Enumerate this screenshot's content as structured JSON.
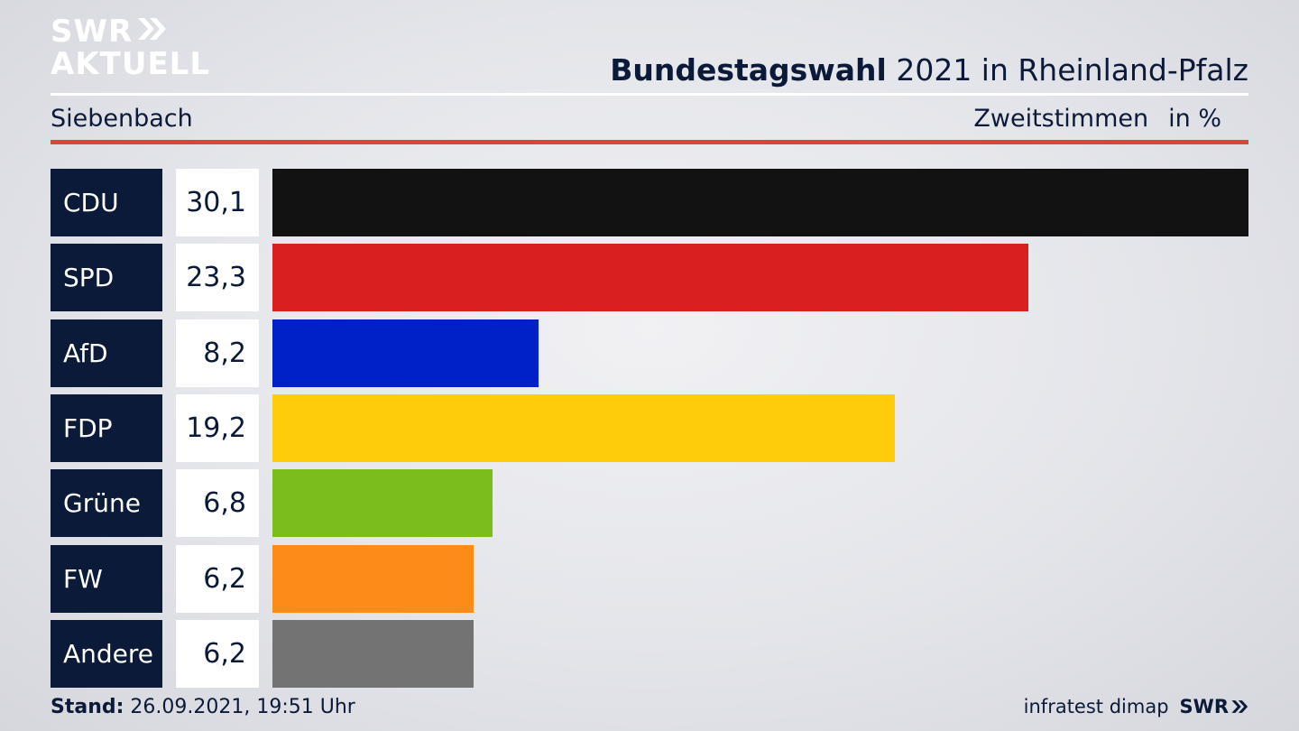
{
  "brand": {
    "line1": "SWR",
    "line2": "AKTUELL"
  },
  "header": {
    "title_bold": "Bundestagswahl",
    "title_rest": " 2021 in Rheinland-Pfalz"
  },
  "subheader": {
    "location": "Siebenbach",
    "metric": "Zweitstimmen",
    "unit": "in %"
  },
  "chart_data": {
    "type": "bar",
    "orientation": "horizontal",
    "title": "Bundestagswahl 2021 in Rheinland-Pfalz",
    "xlabel": "Zweitstimmen in %",
    "ylabel": "",
    "xlim": [
      0,
      30.1
    ],
    "grid": false,
    "legend": "none",
    "categories": [
      "CDU",
      "SPD",
      "AfD",
      "FDP",
      "Grüne",
      "FW",
      "Andere"
    ],
    "values": [
      30.1,
      23.3,
      8.2,
      19.2,
      6.8,
      6.2,
      6.2
    ],
    "labels": [
      "30,1",
      "23,3",
      "8,2",
      "19,2",
      "6,8",
      "6,2",
      "6,2"
    ],
    "colors": [
      "#121212",
      "#d91f1f",
      "#0021c8",
      "#fdcd0c",
      "#7bbd1d",
      "#fc8c17",
      "#737373"
    ]
  },
  "footer": {
    "stand_label": "Stand:",
    "stand_value": " 26.09.2021, 19:51 Uhr",
    "source": "infratest dimap",
    "brand": "SWR"
  }
}
